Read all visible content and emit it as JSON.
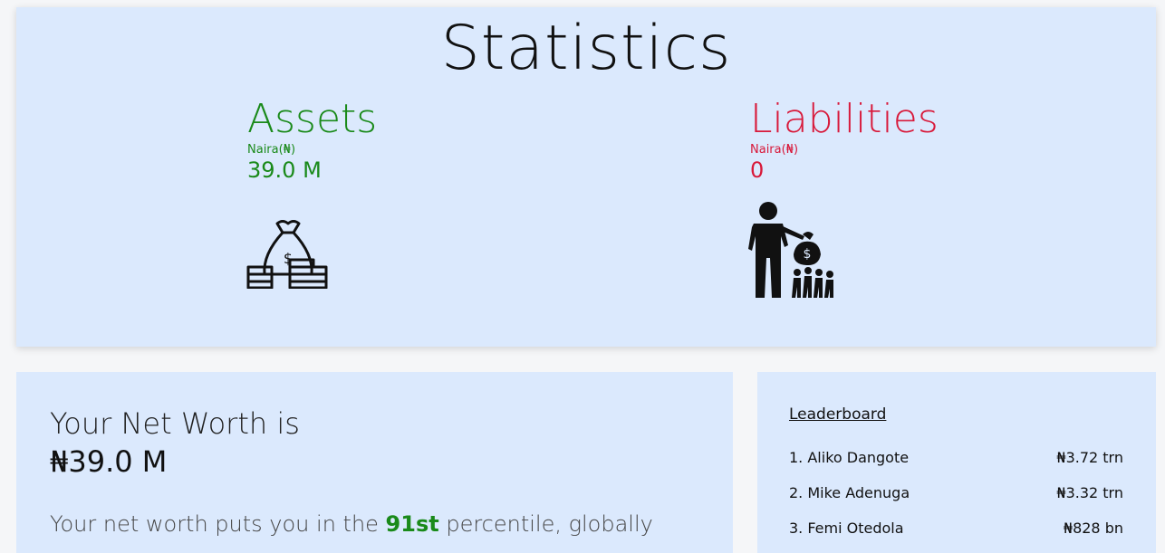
{
  "statistics": {
    "title": "Statistics",
    "assets": {
      "name": "Assets",
      "unit": "Naira(₦)",
      "value": "39.0 M",
      "color": "#1a8a1a",
      "icon": "money-bag-coins-icon"
    },
    "liabilities": {
      "name": "Liabilities",
      "unit": "Naira(₦)",
      "value": "0",
      "color": "#d8193a",
      "icon": "man-giving-money-icon"
    }
  },
  "net_worth": {
    "title": "Your Net Worth is",
    "value": "₦39.0 M",
    "desc_prefix": "Your net worth puts you in the ",
    "percentile": "91st",
    "desc_suffix": " percentile, globally"
  },
  "leaderboard": {
    "title": "Leaderboard",
    "rows": [
      {
        "name": "1. Aliko Dangote",
        "worth": "₦3.72 trn"
      },
      {
        "name": "2. Mike Adenuga",
        "worth": "₦3.32 trn"
      },
      {
        "name": "3. Femi Otedola",
        "worth": "₦828 bn"
      }
    ]
  }
}
